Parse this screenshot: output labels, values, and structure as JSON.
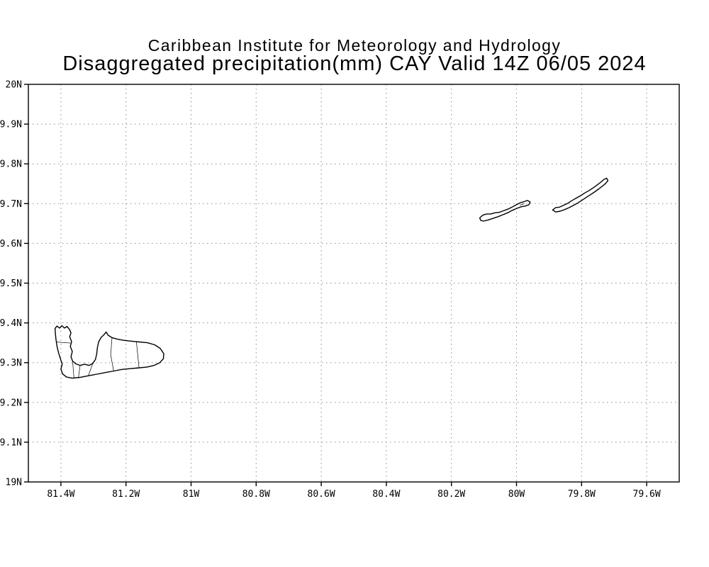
{
  "header": {
    "line1": "Caribbean Institute for Meteorology and Hydrology",
    "line2": "Disaggregated precipitation(mm) CAY Valid 14Z 06/05 2024"
  },
  "colors": {
    "background": "#ffffff",
    "coastline": "#000000",
    "frame": "#000000",
    "grid": "#8c8c8c",
    "text": "#000000"
  },
  "chart_data": {
    "type": "map",
    "title": "Caribbean Institute for Meteorology and Hydrology",
    "subtitle": "Disaggregated precipitation(mm) CAY Valid 14Z 06/05 2024",
    "region": "Cayman Islands",
    "grid_style": "dotted",
    "legend": "none",
    "precipitation_shading_visible": false,
    "x_axis": {
      "label": "",
      "min": -81.5,
      "max": -79.5,
      "ticks": [
        {
          "value": -81.4,
          "label": "81.4W"
        },
        {
          "value": -81.2,
          "label": "81.2W"
        },
        {
          "value": -81.0,
          "label": "81W"
        },
        {
          "value": -80.8,
          "label": "80.8W"
        },
        {
          "value": -80.6,
          "label": "80.6W"
        },
        {
          "value": -80.4,
          "label": "80.4W"
        },
        {
          "value": -80.2,
          "label": "80.2W"
        },
        {
          "value": -80.0,
          "label": "80W"
        },
        {
          "value": -79.8,
          "label": "79.8W"
        },
        {
          "value": -79.6,
          "label": "79.6W"
        }
      ]
    },
    "y_axis": {
      "label": "",
      "min": 19.0,
      "max": 20.0,
      "ticks": [
        {
          "value": 19.0,
          "label": "19N"
        },
        {
          "value": 19.1,
          "label": "19.1N"
        },
        {
          "value": 19.2,
          "label": "19.2N"
        },
        {
          "value": 19.3,
          "label": "19.3N"
        },
        {
          "value": 19.4,
          "label": "19.4N"
        },
        {
          "value": 19.5,
          "label": "19.5N"
        },
        {
          "value": 19.6,
          "label": "19.6N"
        },
        {
          "value": 19.7,
          "label": "19.7N"
        },
        {
          "value": 19.8,
          "label": "19.8N"
        },
        {
          "value": 19.9,
          "label": "19.9N"
        },
        {
          "value": 20.0,
          "label": "20N"
        }
      ]
    },
    "islands": [
      {
        "id": "grand-cayman",
        "name": "Grand Cayman",
        "outline": [
          [
            -81.418,
            19.386
          ],
          [
            -81.412,
            19.392
          ],
          [
            -81.404,
            19.387
          ],
          [
            -81.397,
            19.393
          ],
          [
            -81.389,
            19.387
          ],
          [
            -81.381,
            19.391
          ],
          [
            -81.374,
            19.384
          ],
          [
            -81.369,
            19.375
          ],
          [
            -81.373,
            19.365
          ],
          [
            -81.367,
            19.353
          ],
          [
            -81.371,
            19.341
          ],
          [
            -81.365,
            19.328
          ],
          [
            -81.369,
            19.315
          ],
          [
            -81.364,
            19.304
          ],
          [
            -81.354,
            19.297
          ],
          [
            -81.341,
            19.293
          ],
          [
            -81.327,
            19.296
          ],
          [
            -81.314,
            19.293
          ],
          [
            -81.302,
            19.298
          ],
          [
            -81.294,
            19.308
          ],
          [
            -81.29,
            19.322
          ],
          [
            -81.288,
            19.337
          ],
          [
            -81.284,
            19.352
          ],
          [
            -81.277,
            19.363
          ],
          [
            -81.268,
            19.37
          ],
          [
            -81.261,
            19.377
          ],
          [
            -81.255,
            19.369
          ],
          [
            -81.243,
            19.363
          ],
          [
            -81.226,
            19.359
          ],
          [
            -81.205,
            19.356
          ],
          [
            -81.182,
            19.354
          ],
          [
            -81.158,
            19.352
          ],
          [
            -81.134,
            19.35
          ],
          [
            -81.112,
            19.345
          ],
          [
            -81.095,
            19.336
          ],
          [
            -81.084,
            19.323
          ],
          [
            -81.085,
            19.31
          ],
          [
            -81.096,
            19.3
          ],
          [
            -81.114,
            19.293
          ],
          [
            -81.136,
            19.289
          ],
          [
            -81.16,
            19.287
          ],
          [
            -81.186,
            19.285
          ],
          [
            -81.212,
            19.283
          ],
          [
            -81.238,
            19.279
          ],
          [
            -81.264,
            19.275
          ],
          [
            -81.29,
            19.271
          ],
          [
            -81.316,
            19.267
          ],
          [
            -81.342,
            19.263
          ],
          [
            -81.365,
            19.261
          ],
          [
            -81.383,
            19.264
          ],
          [
            -81.395,
            19.272
          ],
          [
            -81.4,
            19.284
          ],
          [
            -81.396,
            19.296
          ],
          [
            -81.401,
            19.309
          ],
          [
            -81.407,
            19.324
          ],
          [
            -81.412,
            19.341
          ],
          [
            -81.415,
            19.358
          ],
          [
            -81.417,
            19.373
          ]
        ],
        "boundaries": [
          [
            [
              -81.415,
              19.352
            ],
            [
              -81.367,
              19.349
            ]
          ],
          [
            [
              -81.364,
              19.304
            ],
            [
              -81.36,
              19.262
            ]
          ],
          [
            [
              -81.346,
              19.263
            ],
            [
              -81.341,
              19.293
            ]
          ],
          [
            [
              -81.316,
              19.267
            ],
            [
              -81.302,
              19.298
            ]
          ],
          [
            [
              -81.238,
              19.279
            ],
            [
              -81.247,
              19.32
            ],
            [
              -81.243,
              19.363
            ]
          ],
          [
            [
              -81.16,
              19.287
            ],
            [
              -81.168,
              19.352
            ]
          ]
        ]
      },
      {
        "id": "little-cayman",
        "name": "Little Cayman",
        "outline": [
          [
            -80.113,
            19.664
          ],
          [
            -80.104,
            19.671
          ],
          [
            -80.092,
            19.674
          ],
          [
            -80.079,
            19.674
          ],
          [
            -80.066,
            19.677
          ],
          [
            -80.053,
            19.678
          ],
          [
            -80.04,
            19.682
          ],
          [
            -80.027,
            19.686
          ],
          [
            -80.014,
            19.691
          ],
          [
            -80.001,
            19.697
          ],
          [
            -79.989,
            19.702
          ],
          [
            -79.977,
            19.705
          ],
          [
            -79.966,
            19.708
          ],
          [
            -79.958,
            19.704
          ],
          [
            -79.962,
            19.697
          ],
          [
            -79.973,
            19.694
          ],
          [
            -79.986,
            19.692
          ],
          [
            -79.999,
            19.688
          ],
          [
            -80.013,
            19.683
          ],
          [
            -80.027,
            19.677
          ],
          [
            -80.042,
            19.672
          ],
          [
            -80.057,
            19.667
          ],
          [
            -80.072,
            19.663
          ],
          [
            -80.087,
            19.659
          ],
          [
            -80.101,
            19.656
          ],
          [
            -80.11,
            19.658
          ]
        ],
        "boundaries": [
          [
            [
              -79.99,
              19.696
            ],
            [
              -79.975,
              19.7
            ]
          ]
        ]
      },
      {
        "id": "cayman-brac",
        "name": "Cayman Brac",
        "outline": [
          [
            -79.889,
            19.684
          ],
          [
            -79.88,
            19.69
          ],
          [
            -79.868,
            19.691
          ],
          [
            -79.855,
            19.696
          ],
          [
            -79.842,
            19.701
          ],
          [
            -79.829,
            19.708
          ],
          [
            -79.816,
            19.714
          ],
          [
            -79.803,
            19.72
          ],
          [
            -79.79,
            19.727
          ],
          [
            -79.777,
            19.733
          ],
          [
            -79.764,
            19.74
          ],
          [
            -79.752,
            19.747
          ],
          [
            -79.741,
            19.754
          ],
          [
            -79.731,
            19.761
          ],
          [
            -79.723,
            19.764
          ],
          [
            -79.719,
            19.758
          ],
          [
            -79.726,
            19.751
          ],
          [
            -79.736,
            19.744
          ],
          [
            -79.747,
            19.737
          ],
          [
            -79.759,
            19.73
          ],
          [
            -79.772,
            19.723
          ],
          [
            -79.785,
            19.716
          ],
          [
            -79.798,
            19.709
          ],
          [
            -79.811,
            19.702
          ],
          [
            -79.824,
            19.696
          ],
          [
            -79.838,
            19.69
          ],
          [
            -79.852,
            19.685
          ],
          [
            -79.866,
            19.681
          ],
          [
            -79.879,
            19.679
          ]
        ],
        "boundaries": []
      }
    ]
  }
}
